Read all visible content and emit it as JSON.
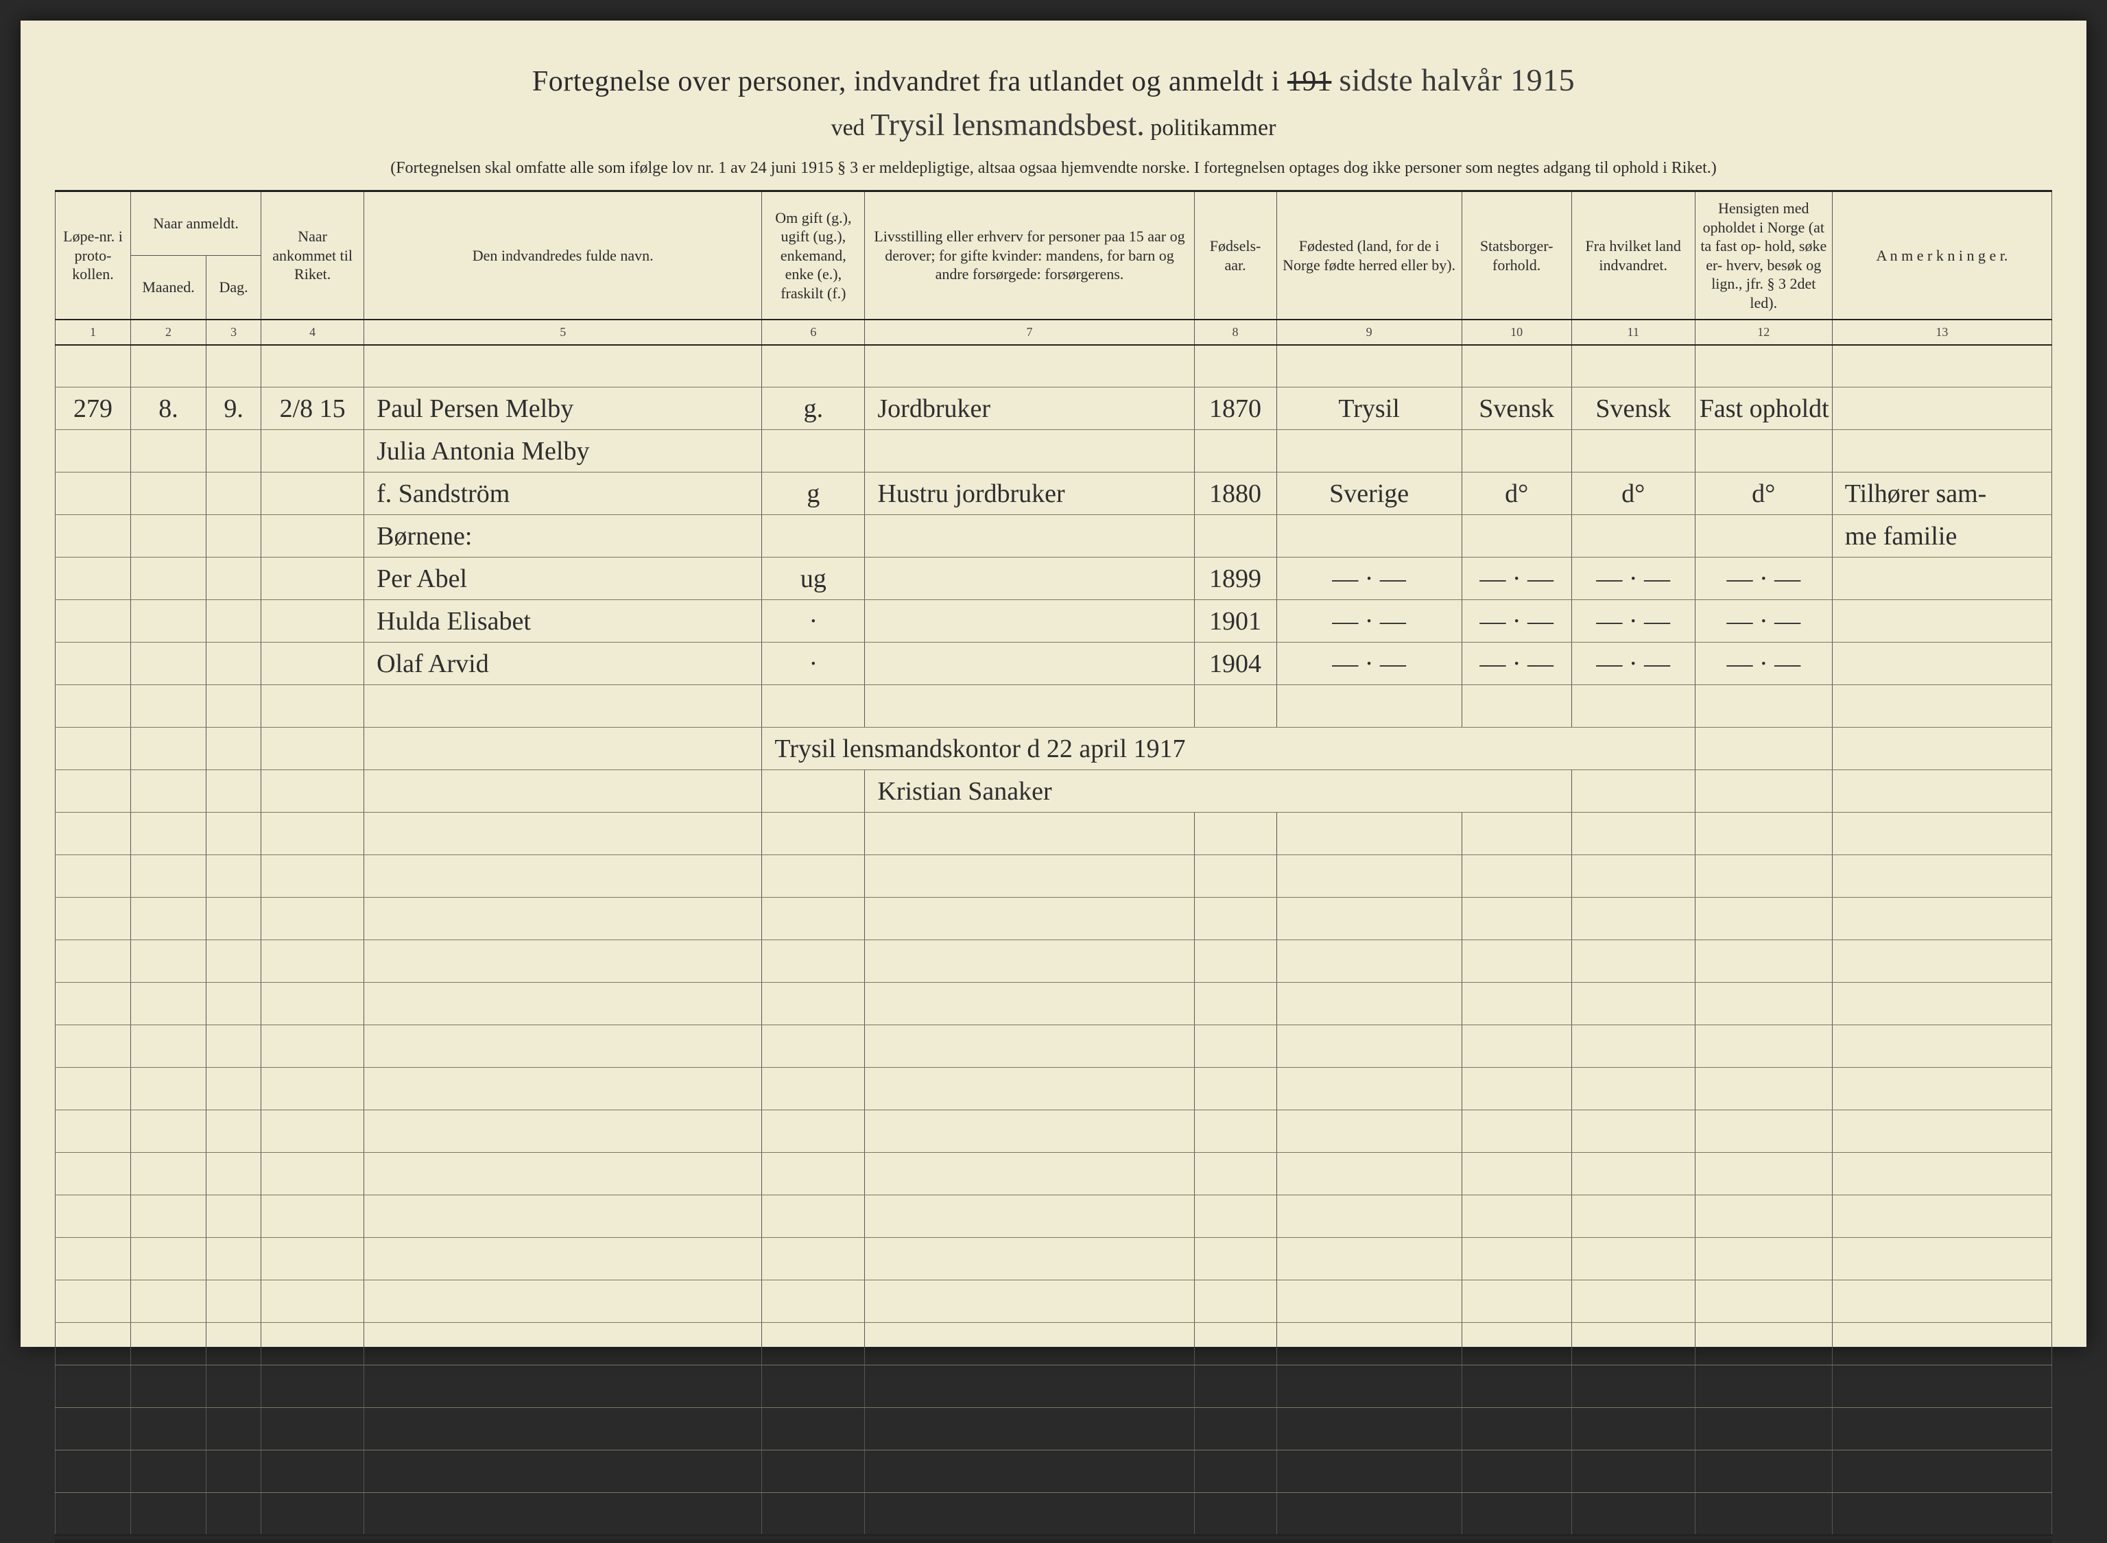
{
  "header": {
    "title_prefix": "Fortegnelse over personer, indvandret fra utlandet og anmeldt i",
    "title_strike": "191",
    "title_hand_year": "sidste halvår 1915",
    "title_line2_prefix": "ved",
    "title_line2_hand": "Trysil lensmandsbest.",
    "title_line2_suffix": "politikammer",
    "subnote": "(Fortegnelsen skal omfatte alle som ifølge lov nr. 1 av 24 juni 1915 § 3 er meldepligtige, altsaa ogsaa hjemvendte norske.  I fortegnelsen optages dog ikke personer som negtes adgang til ophold i Riket.)"
  },
  "columns": {
    "c1": "Løpe-nr.\ni proto-\nkollen.",
    "naar_group": "Naar anmeldt.",
    "c2": "Maaned.",
    "c3": "Dag.",
    "c4": "Naar\nankommet\ntil Riket.",
    "c5": "Den indvandredes fulde navn.",
    "c6": "Om gift (g.),\nugift (ug.),\nenkemand,\nenke (e.),\nfraskilt (f.)",
    "c7": "Livsstilling eller erhverv for personer paa 15 aar\nog derover; for gifte kvinder: mandens, for barn\nog andre forsørgede: forsørgerens.",
    "c8": "Fødsels-\naar.",
    "c9": "Fødested (land, for de i\nNorge fødte herred eller by).",
    "c10": "Statsborger-\nforhold.",
    "c11": "Fra hvilket\nland indvandret.",
    "c12": "Hensigten\nmed opholdet\ni Norge\n(at ta fast op-\nhold, søke er-\nhverv, besøk og\nlign., jfr. § 3\n2det led).",
    "c13": "A n m e r k n i n g e r.",
    "nums": [
      "1",
      "2",
      "3",
      "4",
      "5",
      "6",
      "7",
      "8",
      "9",
      "10",
      "11",
      "12",
      "13"
    ]
  },
  "rows": [
    {
      "c1": "279",
      "c2": "8.",
      "c3": "9.",
      "c4": "2/8 15",
      "c5": "Paul Persen Melby",
      "c6": "g.",
      "c7": "Jordbruker",
      "c8": "1870",
      "c9": "Trysil",
      "c10": "Svensk",
      "c11": "Svensk",
      "c12": "Fast opholdt",
      "c13": ""
    },
    {
      "c1": "",
      "c2": "",
      "c3": "",
      "c4": "",
      "c5": "Julia Antonia Melby",
      "c6": "",
      "c7": "",
      "c8": "",
      "c9": "",
      "c10": "",
      "c11": "",
      "c12": "",
      "c13": ""
    },
    {
      "c1": "",
      "c2": "",
      "c3": "",
      "c4": "",
      "c5": "f. Sandström",
      "c6": "g",
      "c7": "Hustru jordbruker",
      "c8": "1880",
      "c9": "Sverige",
      "c10": "d°",
      "c11": "d°",
      "c12": "d°",
      "c13": "Tilhører sam-"
    },
    {
      "c1": "",
      "c2": "",
      "c3": "",
      "c4": "",
      "c5": "Børnene:",
      "c6": "",
      "c7": "",
      "c8": "",
      "c9": "",
      "c10": "",
      "c11": "",
      "c12": "",
      "c13": "me familie"
    },
    {
      "c1": "",
      "c2": "",
      "c3": "",
      "c4": "",
      "c5": "Per Abel",
      "c6": "ug",
      "c7": "",
      "c8": "1899",
      "c9": "— · —",
      "c10": "— · —",
      "c11": "— · —",
      "c12": "— · —",
      "c13": ""
    },
    {
      "c1": "",
      "c2": "",
      "c3": "",
      "c4": "",
      "c5": "Hulda Elisabet",
      "c6": "·",
      "c7": "",
      "c8": "1901",
      "c9": "— · —",
      "c10": "— · —",
      "c11": "— · —",
      "c12": "— · —",
      "c13": ""
    },
    {
      "c1": "",
      "c2": "",
      "c3": "",
      "c4": "",
      "c5": "Olaf Arvid",
      "c6": "·",
      "c7": "",
      "c8": "1904",
      "c9": "— · —",
      "c10": "— · —",
      "c11": "— · —",
      "c12": "— · —",
      "c13": ""
    }
  ],
  "signature": {
    "line1": "Trysil lensmandskontor d 22 april 1917",
    "line2": "Kristian Sanaker"
  },
  "blank_rows_after": 17
}
